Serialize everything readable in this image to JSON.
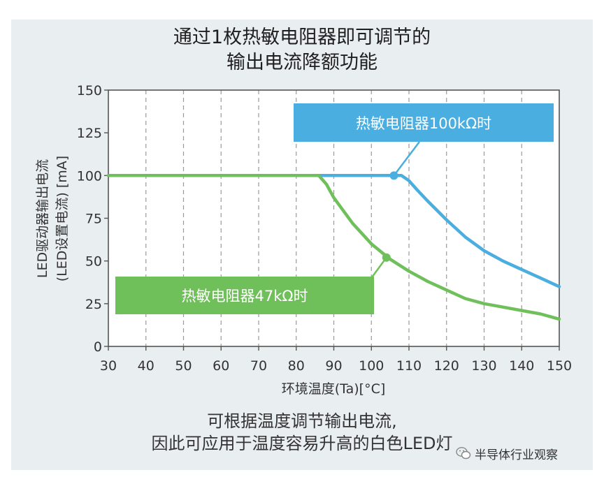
{
  "header": {
    "title_line1": "通过1枚热敏电阻器即可调节的",
    "title_line2": "输出电流降额功能"
  },
  "caption": {
    "line1": "可根据温度调节输出电流,",
    "line2": "因此可应用于温度容易升高的白色LED灯"
  },
  "watermark": {
    "text": "半导体行业观察"
  },
  "colors": {
    "panel_bg": "#e9eef1",
    "plot_bg": "#ffffff",
    "blue": "#4aaee0",
    "green": "#6fbf5a",
    "axis": "#555555",
    "grid": "#9a9a9a"
  },
  "chart_data": {
    "type": "line",
    "xlabel": "环境温度(Ta)[°C]",
    "ylabel_line1": "LED驱动器输出电流",
    "ylabel_line2": "(LED设置电流) [mA]",
    "xlim": [
      30,
      150
    ],
    "ylim": [
      0,
      150
    ],
    "x_ticks": [
      30,
      40,
      50,
      60,
      70,
      80,
      90,
      100,
      110,
      120,
      130,
      140,
      150
    ],
    "y_ticks": [
      0,
      25,
      50,
      75,
      100,
      125,
      150
    ],
    "grid": "vertical dashed",
    "series": [
      {
        "name": "热敏电阻器100kΩ时",
        "color": "#4aaee0",
        "x": [
          30,
          108,
          110,
          112,
          115,
          120,
          125,
          130,
          135,
          140,
          145,
          150
        ],
        "y": [
          100,
          100,
          97,
          92,
          85,
          74,
          64,
          56,
          50,
          45,
          40,
          35
        ]
      },
      {
        "name": "热敏电阻器47kΩ时",
        "color": "#6fbf5a",
        "x": [
          30,
          86,
          88,
          90,
          95,
          100,
          105,
          110,
          115,
          120,
          125,
          130,
          135,
          140,
          145,
          150
        ],
        "y": [
          100,
          100,
          95,
          87,
          72,
          60,
          51,
          44,
          38,
          33,
          28,
          25,
          23,
          21,
          19,
          16
        ]
      }
    ],
    "annotations": [
      {
        "label": "热敏电阻器100kΩ时",
        "x": 106,
        "y": 100
      },
      {
        "label": "热敏电阻器47kΩ时",
        "x": 104,
        "y": 52
      }
    ]
  }
}
